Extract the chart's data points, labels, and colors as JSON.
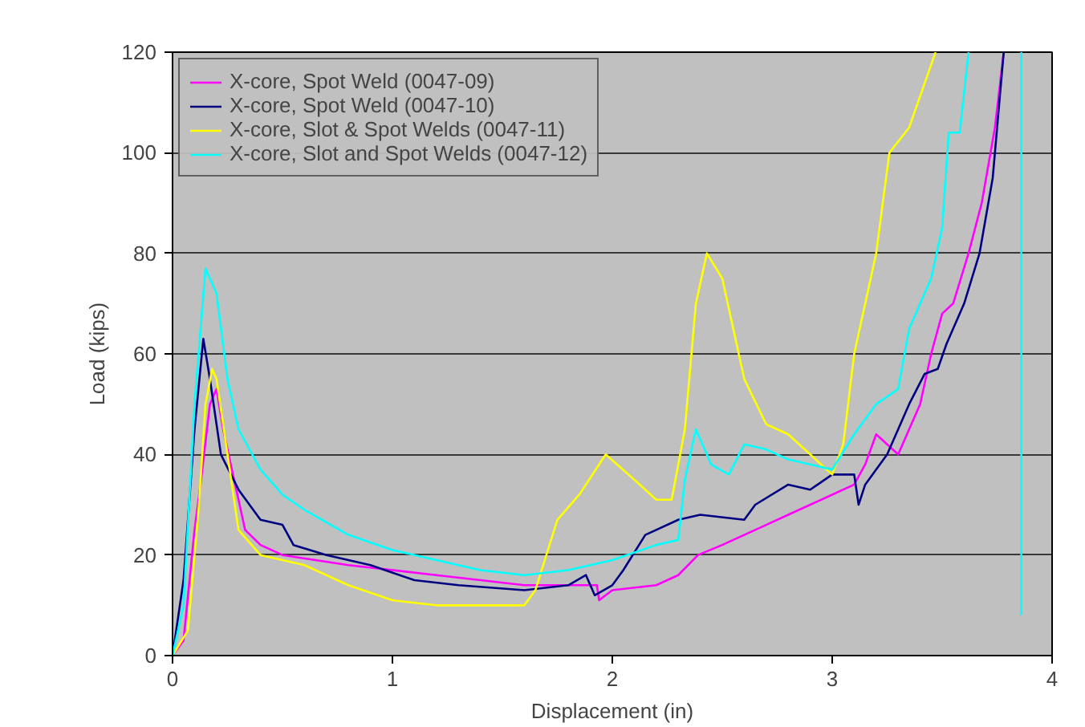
{
  "chart_data": {
    "type": "line",
    "xlabel": "Displacement (in)",
    "ylabel": "Load (kips)",
    "xlim": [
      0,
      4
    ],
    "ylim": [
      0,
      120
    ],
    "xticks": [
      0,
      1,
      2,
      3,
      4
    ],
    "yticks": [
      0,
      20,
      40,
      60,
      80,
      100,
      120
    ],
    "grid": "y",
    "legend": "top left",
    "marker": "none",
    "line_style": "solid",
    "series": [
      {
        "name": "X-core, Spot Weld (0047-09)",
        "color": "#ff00ff",
        "x": [
          0,
          0.05,
          0.1,
          0.13,
          0.17,
          0.2,
          0.23,
          0.28,
          0.33,
          0.4,
          0.5,
          0.8,
          1.2,
          1.6,
          1.85,
          1.93,
          1.94,
          2.0,
          2.2,
          2.3,
          2.39,
          2.5,
          2.7,
          2.8,
          2.9,
          3.0,
          3.1,
          3.15,
          3.2,
          3.25,
          3.3,
          3.4,
          3.45,
          3.5,
          3.55,
          3.62,
          3.68,
          3.74,
          3.78
        ],
        "values": [
          0,
          3,
          25,
          35,
          50,
          53,
          45,
          35,
          25,
          22,
          20,
          18,
          16,
          14,
          14,
          14,
          11,
          13,
          14,
          16,
          20,
          22,
          26,
          28,
          30,
          32,
          34,
          38,
          44,
          42,
          40,
          50,
          60,
          68,
          70,
          80,
          90,
          105,
          120
        ]
      },
      {
        "name": "X-core, Spot Weld (0047-10)",
        "color": "#000080",
        "x": [
          0,
          0.05,
          0.1,
          0.14,
          0.17,
          0.22,
          0.3,
          0.4,
          0.5,
          0.55,
          0.7,
          0.9,
          1.1,
          1.3,
          1.6,
          1.8,
          1.88,
          1.92,
          2.0,
          2.05,
          2.15,
          2.3,
          2.4,
          2.6,
          2.65,
          2.8,
          2.9,
          3.0,
          3.1,
          3.12,
          3.15,
          3.25,
          3.35,
          3.42,
          3.48,
          3.52,
          3.6,
          3.67,
          3.73,
          3.78
        ],
        "values": [
          0,
          15,
          45,
          63,
          55,
          40,
          33,
          27,
          26,
          22,
          20,
          18,
          15,
          14,
          13,
          14,
          16,
          12,
          14,
          17,
          24,
          27,
          28,
          27,
          30,
          34,
          33,
          36,
          36,
          30,
          34,
          40,
          50,
          56,
          57,
          62,
          70,
          80,
          95,
          120
        ]
      },
      {
        "name": "X-core, Slot & Spot Welds (0047-11)",
        "color": "#ffff00",
        "x": [
          0,
          0.07,
          0.12,
          0.15,
          0.18,
          0.2,
          0.25,
          0.3,
          0.4,
          0.6,
          0.8,
          1.0,
          1.2,
          1.6,
          1.65,
          1.75,
          1.85,
          1.97,
          2.1,
          2.2,
          2.27,
          2.33,
          2.38,
          2.43,
          2.5,
          2.6,
          2.7,
          2.8,
          2.9,
          3.0,
          3.05,
          3.1,
          3.2,
          3.26,
          3.35,
          3.47
        ],
        "values": [
          0,
          5,
          30,
          50,
          57,
          55,
          40,
          25,
          20,
          18,
          14,
          11,
          10,
          10,
          13,
          27,
          32,
          40,
          35,
          31,
          31,
          45,
          70,
          80,
          75,
          55,
          46,
          44,
          40,
          36,
          42,
          60,
          80,
          100,
          105,
          120
        ]
      },
      {
        "name": "X-core, Slot and Spot Welds (0047-12)",
        "color": "#00ffff",
        "x": [
          0,
          0.05,
          0.1,
          0.15,
          0.2,
          0.25,
          0.3,
          0.4,
          0.5,
          0.6,
          0.8,
          1.0,
          1.2,
          1.4,
          1.6,
          1.8,
          2.0,
          2.2,
          2.3,
          2.33,
          2.38,
          2.45,
          2.53,
          2.6,
          2.7,
          2.8,
          3.0,
          3.1,
          3.2,
          3.3,
          3.35,
          3.45,
          3.5,
          3.53,
          3.58,
          3.62
        ],
        "values": [
          0,
          10,
          50,
          77,
          72,
          55,
          45,
          37,
          32,
          29,
          24,
          21,
          19,
          17,
          16,
          17,
          19,
          22,
          23,
          35,
          45,
          38,
          36,
          42,
          41,
          39,
          37,
          44,
          50,
          53,
          65,
          75,
          85,
          104,
          104,
          120
        ]
      },
      {
        "color": "#00ffff",
        "x": [
          3.86,
          3.86
        ],
        "values": [
          120,
          8
        ]
      }
    ]
  }
}
